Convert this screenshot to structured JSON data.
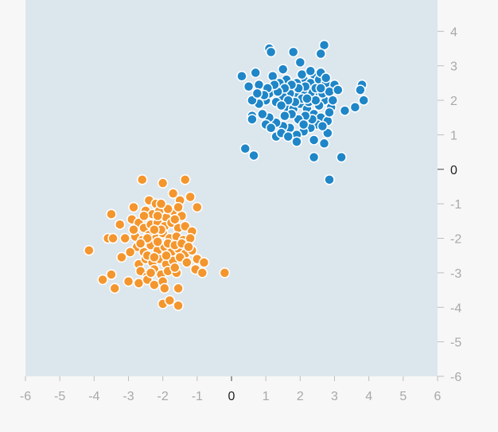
{
  "chart_data": {
    "type": "scatter",
    "xlim": [
      -6,
      6
    ],
    "ylim": [
      -6,
      5
    ],
    "x_ticks": [
      -6,
      -5,
      -4,
      -3,
      -2,
      -1,
      0,
      1,
      2,
      3,
      4,
      5,
      6
    ],
    "y_ticks": [
      -6,
      -5,
      -4,
      -3,
      -2,
      -1,
      0,
      1,
      2,
      3,
      4
    ],
    "x_tick_labels": [
      "-6",
      "-5",
      "-4",
      "-3",
      "-2",
      "-1",
      "0",
      "1",
      "2",
      "3",
      "4",
      "5",
      "6"
    ],
    "y_tick_labels": [
      "-6",
      "-5",
      "-4",
      "-3",
      "-2",
      "-1",
      "0",
      "1",
      "2",
      "3",
      "4"
    ],
    "grid": false,
    "background_color": "#dce6ed",
    "series": [
      {
        "color": "#1f86c8",
        "points": [
          [
            1.1,
            3.5
          ],
          [
            1.15,
            3.4
          ],
          [
            2.7,
            3.6
          ],
          [
            2.6,
            3.35
          ],
          [
            1.8,
            3.4
          ],
          [
            0.3,
            2.7
          ],
          [
            0.7,
            2.8
          ],
          [
            1.5,
            2.9
          ],
          [
            2.0,
            3.1
          ],
          [
            2.4,
            2.75
          ],
          [
            2.1,
            2.6
          ],
          [
            2.3,
            2.5
          ],
          [
            2.55,
            2.6
          ],
          [
            2.75,
            2.5
          ],
          [
            3.0,
            2.45
          ],
          [
            1.2,
            2.7
          ],
          [
            1.6,
            2.6
          ],
          [
            0.8,
            2.45
          ],
          [
            0.5,
            2.4
          ],
          [
            1.9,
            2.5
          ],
          [
            1.4,
            2.5
          ],
          [
            3.8,
            2.45
          ],
          [
            3.75,
            2.3
          ],
          [
            3.85,
            2.0
          ],
          [
            3.6,
            1.8
          ],
          [
            3.3,
            1.7
          ],
          [
            2.9,
            1.8
          ],
          [
            2.7,
            2.0
          ],
          [
            2.5,
            2.1
          ],
          [
            2.3,
            2.2
          ],
          [
            2.1,
            2.3
          ],
          [
            1.9,
            2.1
          ],
          [
            1.7,
            2.2
          ],
          [
            1.5,
            2.1
          ],
          [
            1.3,
            1.95
          ],
          [
            1.0,
            2.0
          ],
          [
            0.8,
            1.9
          ],
          [
            0.6,
            2.0
          ],
          [
            1.1,
            2.2
          ],
          [
            1.6,
            1.8
          ],
          [
            1.8,
            1.75
          ],
          [
            2.0,
            1.9
          ],
          [
            2.2,
            1.75
          ],
          [
            2.4,
            1.6
          ],
          [
            2.6,
            1.5
          ],
          [
            2.8,
            1.4
          ],
          [
            2.5,
            1.3
          ],
          [
            2.3,
            1.2
          ],
          [
            2.1,
            1.1
          ],
          [
            1.9,
            1.0
          ],
          [
            1.7,
            1.2
          ],
          [
            1.5,
            1.25
          ],
          [
            1.3,
            1.35
          ],
          [
            1.1,
            1.5
          ],
          [
            0.9,
            1.6
          ],
          [
            0.6,
            1.55
          ],
          [
            0.6,
            1.45
          ],
          [
            1.0,
            1.3
          ],
          [
            1.3,
            0.95
          ],
          [
            1.9,
            0.8
          ],
          [
            2.4,
            0.85
          ],
          [
            2.7,
            0.75
          ],
          [
            2.8,
            1.05
          ],
          [
            3.2,
            0.35
          ],
          [
            2.4,
            0.35
          ],
          [
            0.65,
            0.4
          ],
          [
            0.4,
            0.6
          ],
          [
            2.85,
            -0.3
          ],
          [
            2.05,
            2.75
          ],
          [
            2.3,
            2.85
          ],
          [
            2.6,
            2.8
          ],
          [
            2.15,
            2.4
          ],
          [
            2.45,
            2.35
          ],
          [
            2.65,
            2.2
          ],
          [
            1.95,
            2.35
          ],
          [
            1.75,
            2.45
          ],
          [
            1.55,
            2.35
          ],
          [
            1.35,
            2.25
          ],
          [
            2.85,
            2.25
          ],
          [
            2.95,
            2.0
          ],
          [
            2.55,
            1.85
          ],
          [
            2.25,
            1.95
          ],
          [
            2.05,
            2.05
          ],
          [
            1.85,
            1.95
          ],
          [
            1.65,
            2.0
          ],
          [
            1.45,
            1.85
          ],
          [
            2.35,
            1.45
          ],
          [
            2.15,
            1.55
          ],
          [
            1.95,
            1.45
          ],
          [
            1.75,
            1.6
          ],
          [
            1.55,
            1.55
          ],
          [
            2.45,
            2.0
          ],
          [
            2.6,
            2.35
          ],
          [
            2.75,
            2.65
          ],
          [
            2.2,
            2.05
          ],
          [
            1.25,
            2.45
          ],
          [
            1.05,
            2.35
          ],
          [
            0.95,
            2.15
          ],
          [
            2.85,
            1.65
          ],
          [
            2.65,
            1.25
          ],
          [
            1.45,
            1.05
          ],
          [
            1.65,
            0.95
          ],
          [
            1.15,
            1.2
          ],
          [
            2.1,
            1.3
          ],
          [
            3.1,
            2.3
          ],
          [
            0.75,
            2.2
          ]
        ]
      },
      {
        "color": "#f4962e",
        "points": [
          [
            -2.6,
            -0.3
          ],
          [
            -2.0,
            -0.4
          ],
          [
            -1.35,
            -0.3
          ],
          [
            -2.4,
            -0.9
          ],
          [
            -2.2,
            -1.0
          ],
          [
            -1.7,
            -0.7
          ],
          [
            -1.5,
            -0.9
          ],
          [
            -1.2,
            -0.8
          ],
          [
            -1.0,
            -1.1
          ],
          [
            -2.85,
            -1.1
          ],
          [
            -3.5,
            -1.3
          ],
          [
            -2.5,
            -1.2
          ],
          [
            -2.3,
            -1.3
          ],
          [
            -2.1,
            -1.2
          ],
          [
            -1.9,
            -1.4
          ],
          [
            -1.7,
            -1.2
          ],
          [
            -1.45,
            -1.35
          ],
          [
            -2.9,
            -1.45
          ],
          [
            -2.7,
            -1.55
          ],
          [
            -2.55,
            -1.7
          ],
          [
            -2.35,
            -1.6
          ],
          [
            -2.15,
            -1.55
          ],
          [
            -1.95,
            -1.65
          ],
          [
            -1.75,
            -1.55
          ],
          [
            -1.55,
            -1.7
          ],
          [
            -1.35,
            -1.65
          ],
          [
            -1.15,
            -1.8
          ],
          [
            -3.6,
            -2.0
          ],
          [
            -3.45,
            -2.0
          ],
          [
            -3.1,
            -2.0
          ],
          [
            -2.8,
            -1.95
          ],
          [
            -2.6,
            -2.05
          ],
          [
            -2.4,
            -1.9
          ],
          [
            -2.2,
            -2.0
          ],
          [
            -2.0,
            -1.85
          ],
          [
            -1.8,
            -2.0
          ],
          [
            -1.6,
            -1.95
          ],
          [
            -1.4,
            -2.05
          ],
          [
            -1.2,
            -2.0
          ],
          [
            -2.75,
            -2.25
          ],
          [
            -2.55,
            -2.4
          ],
          [
            -2.35,
            -2.2
          ],
          [
            -2.15,
            -2.35
          ],
          [
            -1.95,
            -2.25
          ],
          [
            -1.75,
            -2.4
          ],
          [
            -1.55,
            -2.3
          ],
          [
            -1.35,
            -2.45
          ],
          [
            -1.15,
            -2.35
          ],
          [
            -4.15,
            -2.35
          ],
          [
            -3.2,
            -2.55
          ],
          [
            -2.7,
            -2.75
          ],
          [
            -2.5,
            -2.6
          ],
          [
            -2.3,
            -2.7
          ],
          [
            -2.1,
            -2.6
          ],
          [
            -1.9,
            -2.75
          ],
          [
            -1.7,
            -2.65
          ],
          [
            -1.5,
            -2.55
          ],
          [
            -1.3,
            -2.7
          ],
          [
            -1.0,
            -2.6
          ],
          [
            -0.8,
            -2.7
          ],
          [
            -2.65,
            -2.95
          ],
          [
            -2.45,
            -3.1
          ],
          [
            -2.25,
            -2.9
          ],
          [
            -2.05,
            -3.05
          ],
          [
            -1.85,
            -2.95
          ],
          [
            -1.6,
            -3.0
          ],
          [
            -1.05,
            -2.9
          ],
          [
            -0.85,
            -3.0
          ],
          [
            -0.2,
            -3.0
          ],
          [
            -3.5,
            -3.05
          ],
          [
            -3.75,
            -3.2
          ],
          [
            -3.0,
            -3.25
          ],
          [
            -2.7,
            -3.3
          ],
          [
            -2.45,
            -3.2
          ],
          [
            -2.25,
            -3.35
          ],
          [
            -2.0,
            -3.25
          ],
          [
            -1.55,
            -3.45
          ],
          [
            -3.4,
            -3.45
          ],
          [
            -2.0,
            -3.9
          ],
          [
            -1.8,
            -3.8
          ],
          [
            -1.55,
            -3.95
          ],
          [
            -2.15,
            -1.35
          ],
          [
            -1.85,
            -1.15
          ],
          [
            -2.05,
            -1.75
          ],
          [
            -1.65,
            -1.45
          ],
          [
            -2.45,
            -2.0
          ],
          [
            -2.25,
            -1.75
          ],
          [
            -1.85,
            -2.15
          ],
          [
            -1.65,
            -2.2
          ],
          [
            -2.65,
            -2.15
          ],
          [
            -2.45,
            -2.5
          ],
          [
            -2.25,
            -2.55
          ],
          [
            -1.45,
            -2.15
          ],
          [
            -1.25,
            -2.25
          ],
          [
            -2.85,
            -1.75
          ],
          [
            -3.25,
            -1.6
          ],
          [
            -2.05,
            -1.0
          ],
          [
            -1.55,
            -1.1
          ],
          [
            -2.95,
            -2.4
          ],
          [
            -1.95,
            -3.45
          ],
          [
            -2.35,
            -3.0
          ],
          [
            -1.65,
            -2.85
          ],
          [
            -2.55,
            -1.35
          ],
          [
            -1.9,
            -2.5
          ],
          [
            -2.15,
            -2.1
          ]
        ]
      }
    ]
  }
}
